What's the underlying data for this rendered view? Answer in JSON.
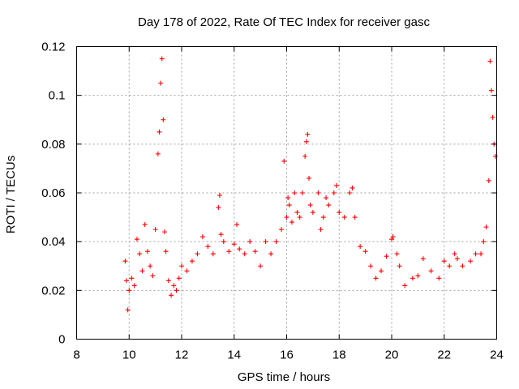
{
  "chart_data": {
    "type": "scatter",
    "title": "Day 178 of 2022, Rate Of TEC Index for receiver gasc",
    "xlabel": "GPS time / hours",
    "ylabel": "ROTI / TECUs",
    "xlim": [
      8,
      24
    ],
    "ylim": [
      0,
      0.12
    ],
    "x_ticks": [
      "8",
      "10",
      "12",
      "14",
      "16",
      "18",
      "20",
      "22",
      "24"
    ],
    "y_ticks": [
      "0",
      "0.02",
      "0.04",
      "0.06",
      "0.08",
      "0.1",
      "0.12"
    ],
    "grid": true,
    "marker": "+",
    "color": "#ff0000",
    "series": [
      {
        "x": [
          9.85,
          9.9,
          9.95,
          10.0,
          10.1,
          10.2,
          10.3,
          10.4,
          10.5,
          10.6,
          10.7,
          10.8,
          10.9,
          11.0,
          11.1,
          11.15,
          11.2,
          11.25,
          11.3,
          11.35,
          11.4,
          11.5,
          11.6,
          11.7,
          11.8,
          11.9,
          12.0,
          12.2,
          12.4,
          12.6,
          12.8,
          13.0,
          13.2,
          13.4,
          13.45,
          13.5,
          13.6,
          13.8,
          14.0,
          14.1,
          14.2,
          14.4,
          14.6,
          14.8,
          15.0,
          15.2,
          15.4,
          15.6,
          15.8,
          15.9,
          16.0,
          16.05,
          16.1,
          16.2,
          16.3,
          16.4,
          16.5,
          16.6,
          16.7,
          16.75,
          16.8,
          16.85,
          16.9,
          17.0,
          17.2,
          17.3,
          17.4,
          17.5,
          17.6,
          17.8,
          17.9,
          18.0,
          18.2,
          18.4,
          18.5,
          18.6,
          18.8,
          19.0,
          19.2,
          19.4,
          19.6,
          19.8,
          20.0,
          20.05,
          20.2,
          20.3,
          20.5,
          20.8,
          21.0,
          21.2,
          21.5,
          21.8,
          22.0,
          22.2,
          22.4,
          22.5,
          22.7,
          23.0,
          23.2,
          23.4,
          23.5,
          23.6,
          23.7,
          23.75,
          23.8,
          23.85,
          23.9,
          23.95
        ],
        "y": [
          0.032,
          0.024,
          0.012,
          0.02,
          0.025,
          0.022,
          0.041,
          0.035,
          0.028,
          0.047,
          0.036,
          0.03,
          0.026,
          0.045,
          0.076,
          0.085,
          0.105,
          0.115,
          0.09,
          0.044,
          0.036,
          0.024,
          0.018,
          0.022,
          0.02,
          0.025,
          0.03,
          0.028,
          0.032,
          0.035,
          0.042,
          0.038,
          0.035,
          0.054,
          0.059,
          0.043,
          0.04,
          0.036,
          0.039,
          0.047,
          0.037,
          0.035,
          0.04,
          0.036,
          0.03,
          0.04,
          0.035,
          0.04,
          0.045,
          0.073,
          0.05,
          0.058,
          0.055,
          0.048,
          0.06,
          0.052,
          0.05,
          0.06,
          0.075,
          0.081,
          0.084,
          0.066,
          0.055,
          0.052,
          0.06,
          0.045,
          0.05,
          0.058,
          0.055,
          0.06,
          0.063,
          0.052,
          0.05,
          0.06,
          0.062,
          0.05,
          0.038,
          0.036,
          0.03,
          0.025,
          0.028,
          0.034,
          0.041,
          0.042,
          0.035,
          0.03,
          0.022,
          0.025,
          0.026,
          0.033,
          0.028,
          0.025,
          0.032,
          0.03,
          0.035,
          0.033,
          0.03,
          0.032,
          0.035,
          0.035,
          0.04,
          0.046,
          0.065,
          0.114,
          0.102,
          0.091,
          0.08,
          0.075
        ]
      }
    ]
  }
}
